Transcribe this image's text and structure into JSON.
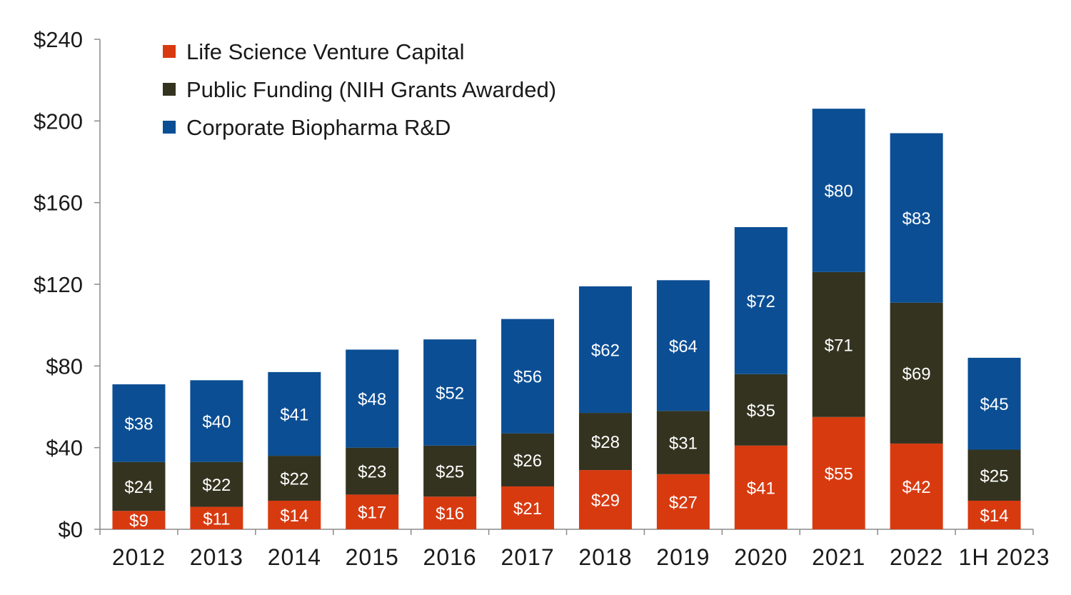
{
  "chart_data": {
    "type": "bar",
    "stacked": true,
    "title": "",
    "xlabel": "",
    "ylabel": "",
    "ylim": [
      0,
      240
    ],
    "yticks": [
      "$0",
      "$40",
      "$80",
      "$120",
      "$160",
      "$200",
      "$240"
    ],
    "ytick_values": [
      0,
      40,
      80,
      120,
      160,
      200,
      240
    ],
    "grid": false,
    "legend_position": "top-left",
    "categories": [
      "2012",
      "2013",
      "2014",
      "2015",
      "2016",
      "2017",
      "2018",
      "2019",
      "2020",
      "2021",
      "2022",
      "1H 2023"
    ],
    "series": [
      {
        "name": "Life Science Venture Capital",
        "color": "#d83a10",
        "values": [
          9,
          11,
          14,
          17,
          16,
          21,
          29,
          27,
          41,
          55,
          42,
          14
        ]
      },
      {
        "name": "Public Funding (NIH Grants Awarded)",
        "color": "#33331f",
        "values": [
          24,
          22,
          22,
          23,
          25,
          26,
          28,
          31,
          35,
          71,
          69,
          25
        ]
      },
      {
        "name": "Corporate Biopharma R&D",
        "color": "#0b4e94",
        "values": [
          38,
          40,
          41,
          48,
          52,
          56,
          62,
          64,
          72,
          80,
          83,
          45
        ]
      }
    ],
    "value_label_prefix": "$"
  }
}
